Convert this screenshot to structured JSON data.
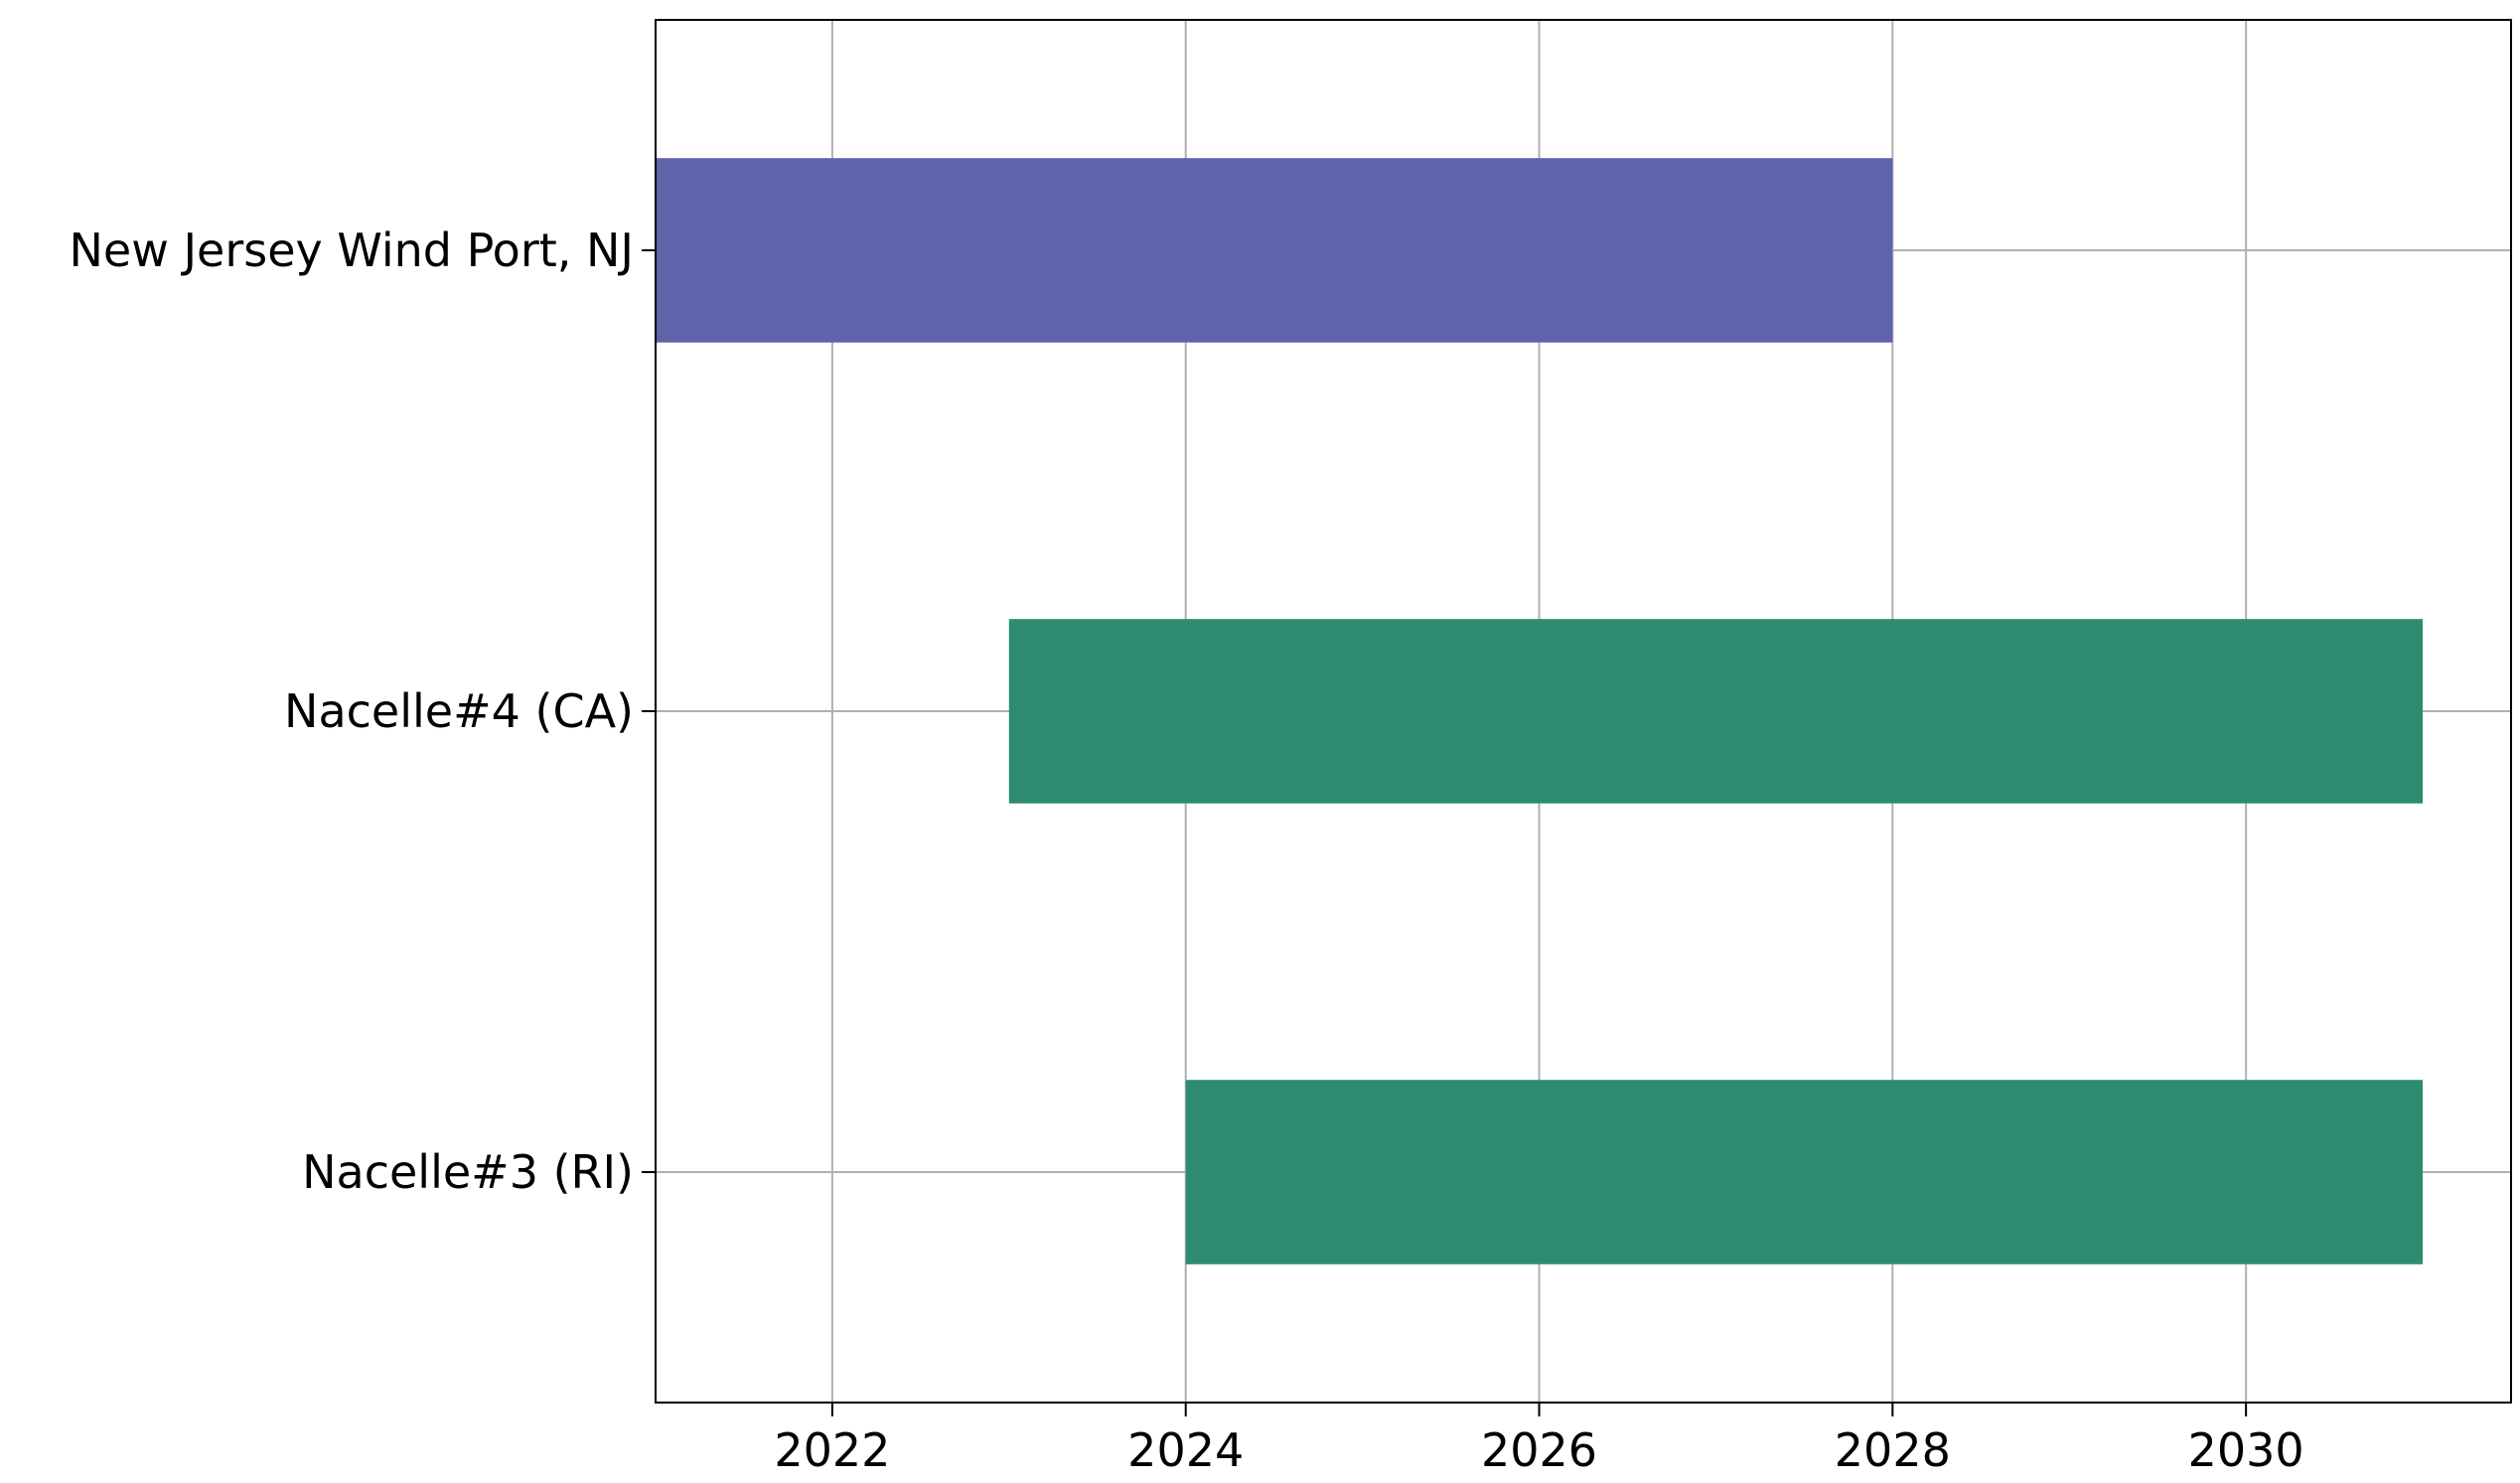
{
  "chart_data": {
    "type": "bar",
    "orientation": "horizontal",
    "title": "",
    "xlabel": "",
    "ylabel": "",
    "xlim": [
      2021,
      2031.5
    ],
    "x_ticks": [
      2022,
      2024,
      2026,
      2028,
      2030
    ],
    "x_tick_labels": [
      "2022",
      "2024",
      "2026",
      "2028",
      "2030"
    ],
    "grid": true,
    "categories": [
      "New Jersey Wind Port, NJ",
      "Nacelle#4 (CA)",
      "Nacelle#3 (RI)"
    ],
    "bars": [
      {
        "category": "New Jersey Wind Port, NJ",
        "start": 2021,
        "end": 2028,
        "color": "#5d64aa"
      },
      {
        "category": "Nacelle#4 (CA)",
        "start": 2023,
        "end": 2031,
        "color": "#2e8b72"
      },
      {
        "category": "Nacelle#3 (RI)",
        "start": 2024,
        "end": 2031,
        "color": "#2e8b72"
      }
    ]
  }
}
